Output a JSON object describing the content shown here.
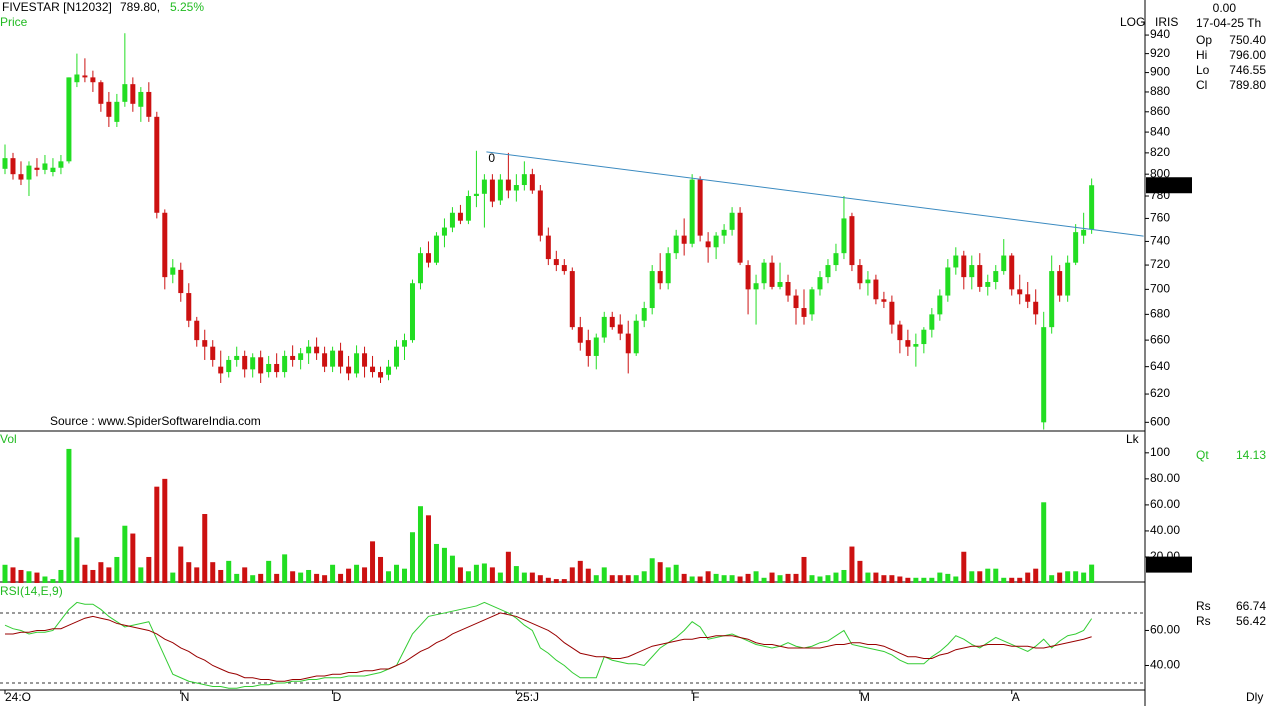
{
  "header": {
    "symbol": "FIVESTAR [N12032]",
    "price": "789.80,",
    "change": "5.25%",
    "top_value": "0.00",
    "date": "17-04-25 Th",
    "scale_name": "IRIS",
    "ohlc": [
      {
        "label": "Op",
        "value": "750.40",
        "color": "#22bb22"
      },
      {
        "label": "Hi",
        "value": "796.00",
        "color": "#dd2222"
      },
      {
        "label": "Lo",
        "value": "746.55",
        "color": "#cccccc"
      },
      {
        "label": "Cl",
        "value": "789.80",
        "color": "#cc33cc"
      }
    ],
    "qt": {
      "label": "Qt",
      "value": "14.13"
    }
  },
  "chart_data": [
    {
      "type": "candlestick",
      "label": "Price",
      "scale": "log",
      "scale_label": "LOG",
      "source": "Source : www.SpiderSoftwareIndia.com",
      "up_color": "#22dd22",
      "down_color": "#cc1111",
      "ylim": [
        594,
        979
      ],
      "yticks": [
        600,
        620,
        640,
        660,
        680,
        700,
        720,
        740,
        760,
        780,
        800,
        820,
        840,
        860,
        880,
        900,
        920,
        940
      ],
      "trendline": {
        "label": "0",
        "color": "#3a8ac0",
        "from": [
          60.25,
          821
        ],
        "to": [
          142.5,
          744.6
        ]
      },
      "candles": [
        [
          805,
          828,
          800,
          815
        ],
        [
          815,
          820,
          795,
          800
        ],
        [
          800,
          812,
          790,
          795
        ],
        [
          795,
          812,
          780,
          808
        ],
        [
          806,
          815,
          798,
          804
        ],
        [
          804,
          818,
          800,
          810
        ],
        [
          802,
          815,
          798,
          806
        ],
        [
          806,
          818,
          800,
          812
        ],
        [
          812,
          895,
          810,
          895
        ],
        [
          890,
          920,
          885,
          898
        ],
        [
          897,
          915,
          890,
          895
        ],
        [
          895,
          902,
          880,
          890
        ],
        [
          890,
          892,
          860,
          868
        ],
        [
          870,
          880,
          845,
          855
        ],
        [
          850,
          878,
          845,
          870
        ],
        [
          870,
          942,
          865,
          888
        ],
        [
          888,
          895,
          860,
          868
        ],
        [
          865,
          885,
          850,
          880
        ],
        [
          880,
          890,
          850,
          855
        ],
        [
          855,
          860,
          760,
          765
        ],
        [
          765,
          768,
          700,
          710
        ],
        [
          712,
          725,
          705,
          718
        ],
        [
          716,
          722,
          690,
          697
        ],
        [
          697,
          705,
          670,
          675
        ],
        [
          675,
          678,
          655,
          660
        ],
        [
          660,
          668,
          645,
          655
        ],
        [
          655,
          660,
          640,
          645
        ],
        [
          640,
          652,
          628,
          635
        ],
        [
          636,
          648,
          632,
          645
        ],
        [
          645,
          655,
          640,
          648
        ],
        [
          648,
          652,
          632,
          638
        ],
        [
          638,
          650,
          632,
          647
        ],
        [
          647,
          652,
          628,
          635
        ],
        [
          636,
          648,
          632,
          642
        ],
        [
          642,
          650,
          632,
          636
        ],
        [
          636,
          652,
          632,
          648
        ],
        [
          648,
          656,
          640,
          645
        ],
        [
          645,
          654,
          638,
          650
        ],
        [
          650,
          660,
          642,
          655
        ],
        [
          655,
          662,
          645,
          650
        ],
        [
          650,
          655,
          636,
          640
        ],
        [
          640,
          655,
          636,
          652
        ],
        [
          652,
          658,
          635,
          640
        ],
        [
          640,
          648,
          630,
          635
        ],
        [
          635,
          656,
          632,
          650
        ],
        [
          650,
          655,
          632,
          640
        ],
        [
          640,
          648,
          632,
          636
        ],
        [
          636,
          640,
          628,
          632
        ],
        [
          634,
          645,
          630,
          640
        ],
        [
          640,
          660,
          638,
          655
        ],
        [
          655,
          665,
          645,
          660
        ],
        [
          660,
          708,
          658,
          705
        ],
        [
          705,
          735,
          700,
          730
        ],
        [
          730,
          740,
          718,
          722
        ],
        [
          722,
          748,
          720,
          745
        ],
        [
          745,
          760,
          735,
          752
        ],
        [
          752,
          770,
          748,
          765
        ],
        [
          765,
          772,
          755,
          758
        ],
        [
          758,
          785,
          755,
          780
        ],
        [
          780,
          822,
          770,
          782
        ],
        [
          782,
          800,
          752,
          795
        ],
        [
          795,
          800,
          770,
          775
        ],
        [
          776,
          800,
          772,
          795
        ],
        [
          795,
          820,
          778,
          785
        ],
        [
          785,
          800,
          775,
          790
        ],
        [
          790,
          812,
          785,
          800
        ],
        [
          800,
          805,
          782,
          785
        ],
        [
          785,
          790,
          740,
          745
        ],
        [
          745,
          752,
          720,
          725
        ],
        [
          725,
          732,
          715,
          720
        ],
        [
          720,
          725,
          712,
          715
        ],
        [
          715,
          718,
          668,
          670
        ],
        [
          670,
          678,
          652,
          658
        ],
        [
          660,
          668,
          640,
          648
        ],
        [
          648,
          665,
          638,
          662
        ],
        [
          662,
          682,
          658,
          678
        ],
        [
          678,
          682,
          668,
          670
        ],
        [
          672,
          680,
          660,
          665
        ],
        [
          665,
          675,
          635,
          650
        ],
        [
          650,
          680,
          648,
          675
        ],
        [
          675,
          690,
          670,
          685
        ],
        [
          685,
          720,
          680,
          715
        ],
        [
          715,
          730,
          700,
          705
        ],
        [
          705,
          735,
          700,
          730
        ],
        [
          730,
          750,
          725,
          745
        ],
        [
          745,
          760,
          728,
          738
        ],
        [
          738,
          800,
          735,
          795
        ],
        [
          795,
          798,
          740,
          745
        ],
        [
          740,
          748,
          722,
          735
        ],
        [
          735,
          748,
          725,
          745
        ],
        [
          745,
          755,
          738,
          750
        ],
        [
          750,
          770,
          745,
          765
        ],
        [
          765,
          770,
          720,
          722
        ],
        [
          720,
          724,
          680,
          700
        ],
        [
          700,
          712,
          672,
          705
        ],
        [
          705,
          725,
          700,
          722
        ],
        [
          722,
          728,
          700,
          702
        ],
        [
          702,
          722,
          700,
          706
        ],
        [
          706,
          712,
          690,
          695
        ],
        [
          695,
          700,
          672,
          685
        ],
        [
          685,
          700,
          672,
          678
        ],
        [
          680,
          702,
          675,
          700
        ],
        [
          700,
          715,
          695,
          710
        ],
        [
          710,
          725,
          705,
          720
        ],
        [
          720,
          738,
          715,
          730
        ],
        [
          730,
          780,
          725,
          760
        ],
        [
          762,
          765,
          715,
          720
        ],
        [
          720,
          725,
          700,
          705
        ],
        [
          705,
          715,
          695,
          708
        ],
        [
          708,
          712,
          688,
          692
        ],
        [
          692,
          698,
          685,
          690
        ],
        [
          690,
          695,
          665,
          672
        ],
        [
          672,
          675,
          650,
          660
        ],
        [
          660,
          668,
          648,
          655
        ],
        [
          655,
          665,
          640,
          657
        ],
        [
          657,
          670,
          650,
          668
        ],
        [
          668,
          685,
          662,
          680
        ],
        [
          680,
          700,
          675,
          695
        ],
        [
          695,
          725,
          690,
          718
        ],
        [
          718,
          735,
          712,
          728
        ],
        [
          728,
          732,
          700,
          710
        ],
        [
          710,
          728,
          700,
          720
        ],
        [
          720,
          730,
          698,
          702
        ],
        [
          702,
          712,
          695,
          706
        ],
        [
          706,
          720,
          700,
          715
        ],
        [
          715,
          742,
          712,
          728
        ],
        [
          728,
          730,
          695,
          700
        ],
        [
          700,
          712,
          688,
          696
        ],
        [
          696,
          706,
          685,
          690
        ],
        [
          690,
          700,
          672,
          680
        ],
        [
          600,
          682,
          595,
          670
        ],
        [
          670,
          728,
          665,
          715
        ],
        [
          715,
          720,
          690,
          695
        ],
        [
          695,
          728,
          690,
          722
        ],
        [
          722,
          755,
          720,
          748
        ],
        [
          745,
          765,
          738,
          750
        ],
        [
          750.4,
          796,
          746.55,
          789.8
        ]
      ]
    },
    {
      "type": "bar",
      "label": "Vol",
      "corner_label": "Lk",
      "ylim": [
        0,
        116
      ],
      "yticks": [
        {
          "value": 20,
          "label": "20.00"
        },
        {
          "value": 40,
          "label": "40.00"
        },
        {
          "value": 60,
          "label": "60.00"
        },
        {
          "value": 80,
          "label": "80.00"
        },
        100
      ],
      "values": [
        14,
        12,
        10,
        9,
        8,
        5,
        3,
        10,
        103,
        35,
        14,
        10,
        16,
        12,
        20,
        44,
        38,
        12,
        20,
        74,
        80,
        8,
        28,
        16,
        12,
        53,
        16,
        10,
        17,
        7,
        12,
        6,
        7,
        17,
        7,
        22,
        9,
        8,
        10,
        7,
        6,
        14,
        7,
        11,
        14,
        12,
        32,
        20,
        9,
        14,
        11,
        39,
        59,
        52,
        30,
        27,
        21,
        12,
        9,
        14,
        15,
        12,
        8,
        24,
        13,
        8,
        8,
        6,
        4,
        3,
        3,
        12,
        17,
        11,
        6,
        12,
        6,
        6,
        6,
        6,
        9,
        19,
        16,
        12,
        14,
        7,
        5,
        5,
        9,
        7,
        6,
        6,
        5,
        7,
        9,
        4,
        8,
        6,
        7,
        7,
        20,
        6,
        5,
        6,
        8,
        10,
        28,
        17,
        8,
        8,
        6,
        6,
        5,
        4,
        4,
        4,
        4,
        8,
        7,
        5,
        24,
        9,
        9,
        11,
        11,
        4,
        4,
        4,
        8,
        11,
        62,
        6,
        8,
        9,
        9,
        8,
        14.13
      ]
    },
    {
      "type": "line",
      "label": "RSI(14,E,9)",
      "period": "Dly",
      "ylim": [
        26,
        87.1
      ],
      "yticks": [
        {
          "value": 40,
          "label": "40.00"
        },
        {
          "value": 60,
          "label": "60.00"
        }
      ],
      "levels": [
        30,
        70
      ],
      "x_labels": [
        {
          "index": 0,
          "label": "24:O"
        },
        {
          "index": 22,
          "label": "N"
        },
        {
          "index": 41,
          "label": "D"
        },
        {
          "index": 64,
          "label": "25:J"
        },
        {
          "index": 86,
          "label": "F"
        },
        {
          "index": 107,
          "label": "M"
        },
        {
          "index": 126,
          "label": "A"
        }
      ],
      "series": [
        {
          "name": "Rs",
          "color": "#33cc33",
          "last": "66.74",
          "values": [
            63,
            61,
            60,
            58,
            59,
            59,
            60,
            66,
            72,
            76,
            75,
            75,
            72,
            68,
            65,
            62,
            63,
            64,
            65,
            55,
            45,
            35,
            33,
            31,
            30,
            29,
            28,
            28,
            27,
            27,
            28,
            28,
            29,
            29,
            30,
            30,
            31,
            31,
            32,
            32,
            33,
            33,
            33,
            34,
            34,
            34,
            35,
            36,
            38,
            40,
            49,
            58,
            63,
            68,
            69,
            70,
            71,
            72,
            73,
            74,
            76,
            74,
            72,
            70,
            67,
            63,
            60,
            50,
            47,
            43,
            40,
            36,
            33,
            33,
            33,
            45,
            43,
            42,
            41,
            41,
            40,
            45,
            50,
            53,
            56,
            60,
            65,
            62,
            55,
            56,
            57,
            58,
            56,
            54,
            52,
            51,
            50,
            51,
            53,
            51,
            50,
            51,
            53,
            54,
            57,
            60,
            52,
            51,
            50,
            49,
            48,
            46,
            43,
            41,
            41,
            41,
            45,
            48,
            52,
            57,
            55,
            52,
            50,
            53,
            56,
            54,
            52,
            50,
            48,
            51,
            55,
            50,
            54,
            57,
            58,
            60,
            66.74
          ]
        },
        {
          "name": "Rs",
          "color": "#990000",
          "last": "56.42",
          "values": [
            58,
            58,
            59,
            59,
            60,
            60,
            61,
            61,
            63,
            65,
            67,
            68,
            67,
            66,
            64,
            63,
            62,
            61,
            60,
            58,
            55,
            53,
            50,
            48,
            45,
            43,
            40,
            38,
            36,
            35,
            33,
            33,
            32,
            32,
            31,
            31,
            32,
            32,
            33,
            34,
            34,
            35,
            35,
            36,
            36,
            37,
            37,
            38,
            38,
            40,
            42,
            45,
            48,
            50,
            53,
            55,
            58,
            60,
            62,
            64,
            66,
            68,
            70,
            69,
            68,
            66,
            64,
            62,
            60,
            57,
            53,
            50,
            47,
            46,
            45,
            45,
            44,
            44,
            45,
            47,
            49,
            51,
            52,
            53,
            54,
            55,
            55,
            56,
            56,
            57,
            57,
            57,
            56,
            55,
            53,
            52,
            52,
            51,
            50,
            50,
            50,
            50,
            50,
            51,
            52,
            52,
            53,
            53,
            52,
            52,
            51,
            49,
            47,
            45,
            45,
            44,
            44,
            46,
            47,
            49,
            50,
            51,
            51,
            52,
            52,
            52,
            51,
            51,
            51,
            50,
            50,
            51,
            52,
            53,
            54,
            55,
            56.42
          ]
        }
      ]
    }
  ]
}
